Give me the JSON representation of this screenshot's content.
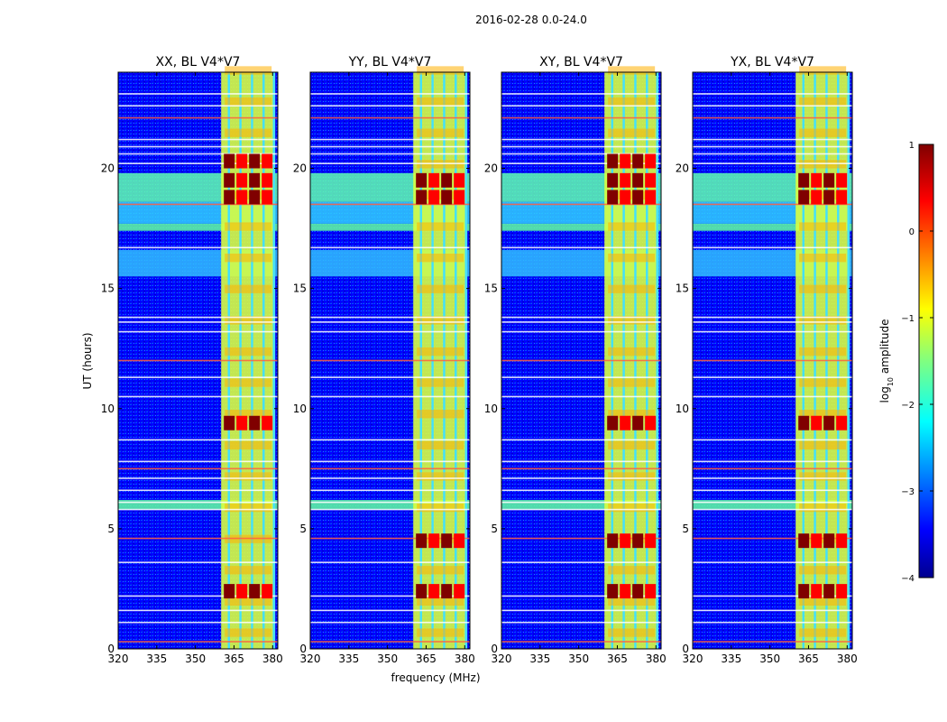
{
  "suptitle": "2016-02-28 0.0-24.0",
  "colors": {
    "deep_blue": "#00008f",
    "blue": "#0000ff",
    "cyan": "#00ffff",
    "yellow": "#ffff00",
    "red": "#ff0000",
    "dark_red": "#800000"
  },
  "chart_data": {
    "type": "heatmap",
    "xlabel": "frequency (MHz)",
    "ylabel": "UT (hours)",
    "xlim": [
      320,
      382
    ],
    "ylim": [
      0,
      24
    ],
    "xticks": [
      320,
      335,
      350,
      365,
      380
    ],
    "xtick_labels": [
      "320",
      "335",
      "350",
      "365",
      "380"
    ],
    "yticks": [
      0,
      5,
      10,
      15,
      20
    ],
    "ytick_labels": [
      "0",
      "5",
      "10",
      "15",
      "20"
    ],
    "colormap": "jet",
    "panels": [
      {
        "title": "XX, BL V4*V7",
        "strong_band_mhz": [
          360,
          381
        ],
        "peak_hours": [
          2.4,
          9.4,
          18.8,
          19.5,
          20.3
        ]
      },
      {
        "title": "YY, BL V4*V7",
        "strong_band_mhz": [
          360,
          381
        ],
        "peak_hours": [
          2.4,
          4.5,
          18.8,
          19.5
        ]
      },
      {
        "title": "XY, BL V4*V7",
        "strong_band_mhz": [
          360,
          381
        ],
        "peak_hours": [
          2.4,
          4.5,
          9.4,
          18.8,
          19.5,
          20.3
        ]
      },
      {
        "title": "YX, BL V4*V7",
        "strong_band_mhz": [
          360,
          381
        ],
        "peak_hours": [
          2.4,
          4.5,
          9.4,
          18.8,
          19.5
        ]
      }
    ],
    "horizontal_rfi_lines_hours": [
      0.3,
      1.1,
      1.6,
      2.2,
      3.6,
      4.6,
      5.8,
      6.1,
      6.6,
      7.1,
      7.5,
      7.8,
      8.7,
      10.5,
      11.3,
      12.0,
      13.2,
      13.6,
      13.8,
      16.7,
      18.5,
      20.2,
      20.6,
      20.9,
      21.2,
      22.1,
      22.6,
      23.1
    ],
    "vertical_rfi_lines_mhz": [
      363,
      367.5,
      372,
      376.5,
      380.5
    ],
    "colorbar": {
      "label": "log₁₀ amplitude",
      "label_base": "log",
      "label_sub": "10",
      "label_rest": " amplitude",
      "range": [
        -4,
        1
      ],
      "ticks": [
        1,
        0,
        -1,
        -2,
        -3,
        -4
      ],
      "tick_labels": [
        "1",
        "0",
        "−1",
        "−2",
        "−3",
        "−4"
      ]
    }
  }
}
